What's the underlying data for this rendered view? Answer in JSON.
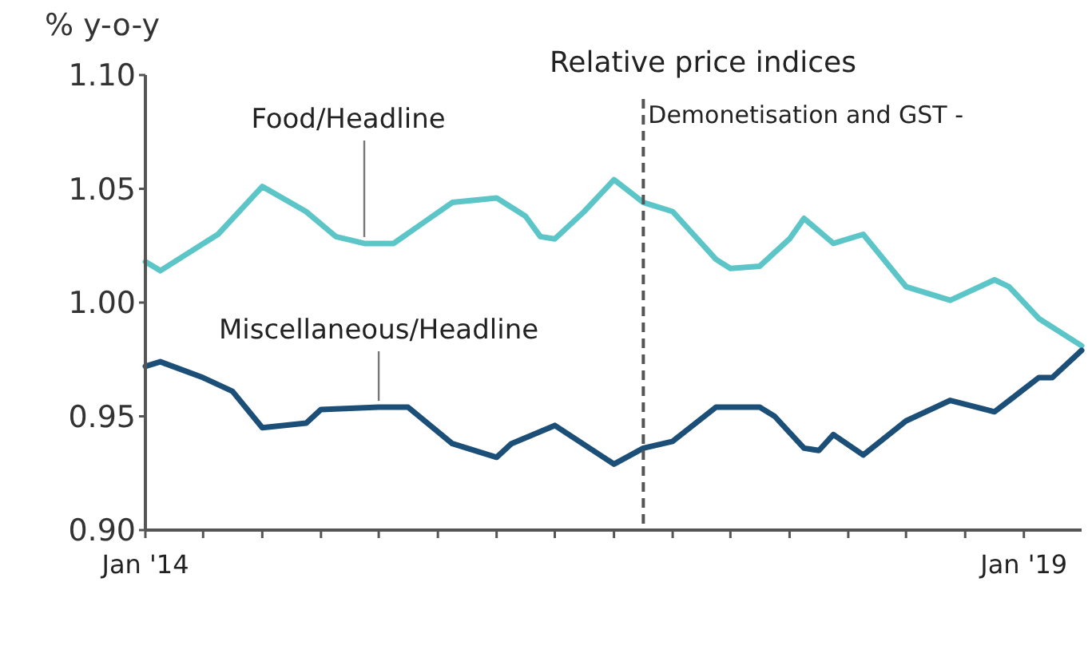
{
  "chart_data": {
    "type": "line",
    "title": "Relative price indices",
    "ylabel": "% y-o-y",
    "xlim": [
      "2014-01",
      "2019-05"
    ],
    "xticks": [
      {
        "value": "2014-01",
        "label": "Jan '14"
      },
      {
        "value": "2014-05",
        "label": null
      },
      {
        "value": "2014-09",
        "label": null
      },
      {
        "value": "2015-01",
        "label": null
      },
      {
        "value": "2015-05",
        "label": null
      },
      {
        "value": "2015-09",
        "label": null
      },
      {
        "value": "2016-01",
        "label": null
      },
      {
        "value": "2016-05",
        "label": null
      },
      {
        "value": "2016-09",
        "label": null
      },
      {
        "value": "2017-01",
        "label": null
      },
      {
        "value": "2017-05",
        "label": null
      },
      {
        "value": "2017-09",
        "label": null
      },
      {
        "value": "2018-01",
        "label": null
      },
      {
        "value": "2018-05",
        "label": null
      },
      {
        "value": "2018-09",
        "label": null
      },
      {
        "value": "2019-01",
        "label": "Jan '19"
      }
    ],
    "ylim": [
      0.9,
      1.1
    ],
    "yticks": [
      {
        "value": 0.9,
        "label": "0.90"
      },
      {
        "value": 0.95,
        "label": "0.95"
      },
      {
        "value": 1.0,
        "label": "1.00"
      },
      {
        "value": 1.05,
        "label": "1.05"
      },
      {
        "value": 1.1,
        "label": "1.10"
      }
    ],
    "grid": false,
    "marker": "none",
    "line_style": "solid",
    "ref_lines": [
      {
        "axis": "x",
        "value": "2016-11",
        "label": "Demonetisation and GST -",
        "line_style": "dashed",
        "color": "#555555"
      }
    ],
    "series": [
      {
        "name": "Food/Headline",
        "color": "#5cc5c8",
        "x": [
          "2014-01",
          "2014-02",
          "2014-06",
          "2014-09",
          "2014-12",
          "2015-02",
          "2015-04",
          "2015-06",
          "2015-08",
          "2015-10",
          "2016-01",
          "2016-03",
          "2016-04",
          "2016-05",
          "2016-07",
          "2016-09",
          "2016-11",
          "2017-01",
          "2017-04",
          "2017-05",
          "2017-07",
          "2017-09",
          "2017-10",
          "2017-12",
          "2018-02",
          "2018-05",
          "2018-08",
          "2018-11",
          "2018-12",
          "2019-02",
          "2019-05"
        ],
        "values": [
          1.018,
          1.014,
          1.03,
          1.051,
          1.04,
          1.029,
          1.026,
          1.026,
          1.035,
          1.044,
          1.046,
          1.038,
          1.029,
          1.028,
          1.04,
          1.054,
          1.044,
          1.04,
          1.019,
          1.015,
          1.016,
          1.028,
          1.037,
          1.026,
          1.03,
          1.007,
          1.001,
          1.01,
          1.007,
          0.993,
          0.981
        ]
      },
      {
        "name": "Miscellaneous/Headline",
        "color": "#1c4f78",
        "x": [
          "2014-01",
          "2014-02",
          "2014-05",
          "2014-07",
          "2014-09",
          "2014-12",
          "2015-01",
          "2015-05",
          "2015-07",
          "2015-10",
          "2016-01",
          "2016-02",
          "2016-05",
          "2016-09",
          "2016-11",
          "2017-01",
          "2017-04",
          "2017-07",
          "2017-08",
          "2017-10",
          "2017-11",
          "2017-12",
          "2018-02",
          "2018-05",
          "2018-08",
          "2018-11",
          "2019-02",
          "2019-03",
          "2019-05"
        ],
        "values": [
          0.972,
          0.974,
          0.967,
          0.961,
          0.945,
          0.947,
          0.953,
          0.954,
          0.954,
          0.938,
          0.932,
          0.938,
          0.946,
          0.929,
          0.936,
          0.939,
          0.954,
          0.954,
          0.95,
          0.936,
          0.935,
          0.942,
          0.933,
          0.948,
          0.957,
          0.952,
          0.967,
          0.967,
          0.979
        ]
      }
    ]
  }
}
